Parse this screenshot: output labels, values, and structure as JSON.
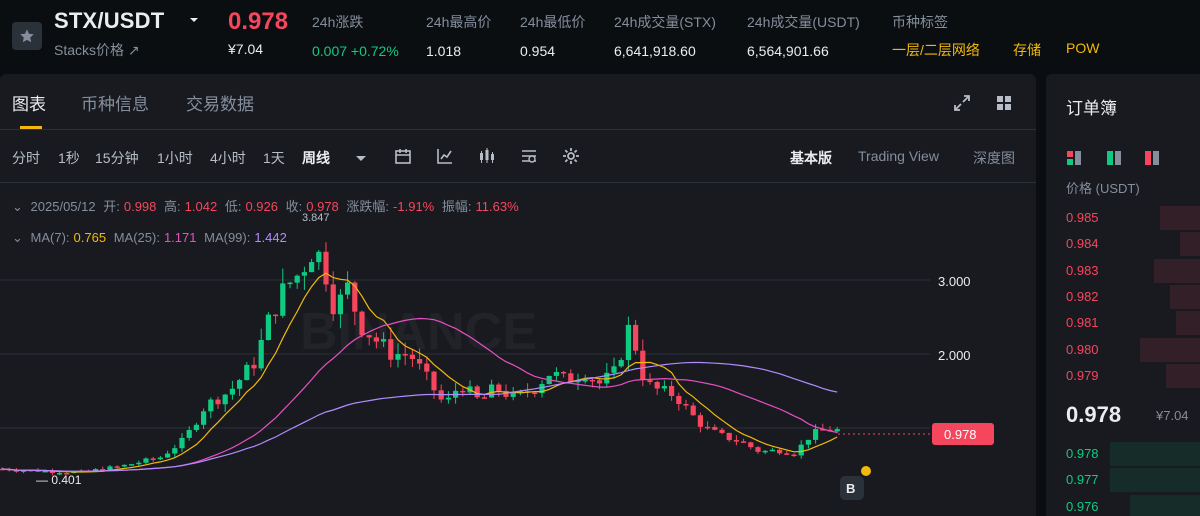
{
  "header": {
    "pair": "STX/USDT",
    "subtitle": "Stacks价格 ↗",
    "last_price": "0.978",
    "last_price_cny": "¥7.04",
    "stats": [
      {
        "label": "24h涨跌",
        "value": "0.007 +0.72%"
      },
      {
        "label": "24h最高价",
        "value": "1.018"
      },
      {
        "label": "24h最低价",
        "value": "0.954"
      },
      {
        "label": "24h成交量(STX)",
        "value": "6,641,918.60"
      },
      {
        "label": "24h成交量(USDT)",
        "value": "6,564,901.66"
      },
      {
        "label": "币种标签",
        "value": ""
      }
    ],
    "tags": [
      "一层/二层网络",
      "存储",
      "POW"
    ]
  },
  "tabs": [
    "图表",
    "币种信息",
    "交易数据"
  ],
  "timeframes": [
    "分时",
    "1秒",
    "15分钟",
    "1小时",
    "4小时",
    "1天",
    "周线"
  ],
  "views": [
    "基本版",
    "Trading View",
    "深度图"
  ],
  "ohlc": {
    "date": "2025/05/12",
    "open_label": "开:",
    "open": "0.998",
    "high_label": "高:",
    "high": "1.042",
    "low_label": "低:",
    "low": "0.926",
    "close_label": "收:",
    "close": "0.978",
    "change_label": "涨跌幅:",
    "change": "-1.91%",
    "amp_label": "振幅:",
    "amp": "11.63%"
  },
  "ma": {
    "ma7_label": "MA(7):",
    "ma7": "0.765",
    "ma25_label": "MA(25):",
    "ma25": "1.171",
    "ma99_label": "MA(99):",
    "ma99": "1.442"
  },
  "chart": {
    "y_ticks": [
      "3.000",
      "2.000"
    ],
    "max_label": "3.847",
    "min_label": "— 0.401",
    "price_tag": "0.978",
    "watermark": "BINANCE"
  },
  "chart_data": {
    "type": "candlestick",
    "series": [
      {
        "name": "MA(7)",
        "color": "#f0b90b"
      },
      {
        "name": "MA(25)",
        "color": "#e94fc4"
      },
      {
        "name": "MA(99)",
        "color": "#b18cff"
      }
    ],
    "ylim": [
      0.3,
      4.0
    ]
  },
  "colors": {
    "up": "#0ecb81",
    "down": "#f6465d",
    "accent": "#f0b90b"
  },
  "orderbook": {
    "title": "订单簿",
    "price_header": "价格 (USDT)",
    "asks": [
      "0.985",
      "0.984",
      "0.983",
      "0.982",
      "0.981",
      "0.980",
      "0.979"
    ],
    "mid_price": "0.978",
    "mid_cny": "¥7.04",
    "bids": [
      "0.978",
      "0.977",
      "0.976"
    ]
  }
}
